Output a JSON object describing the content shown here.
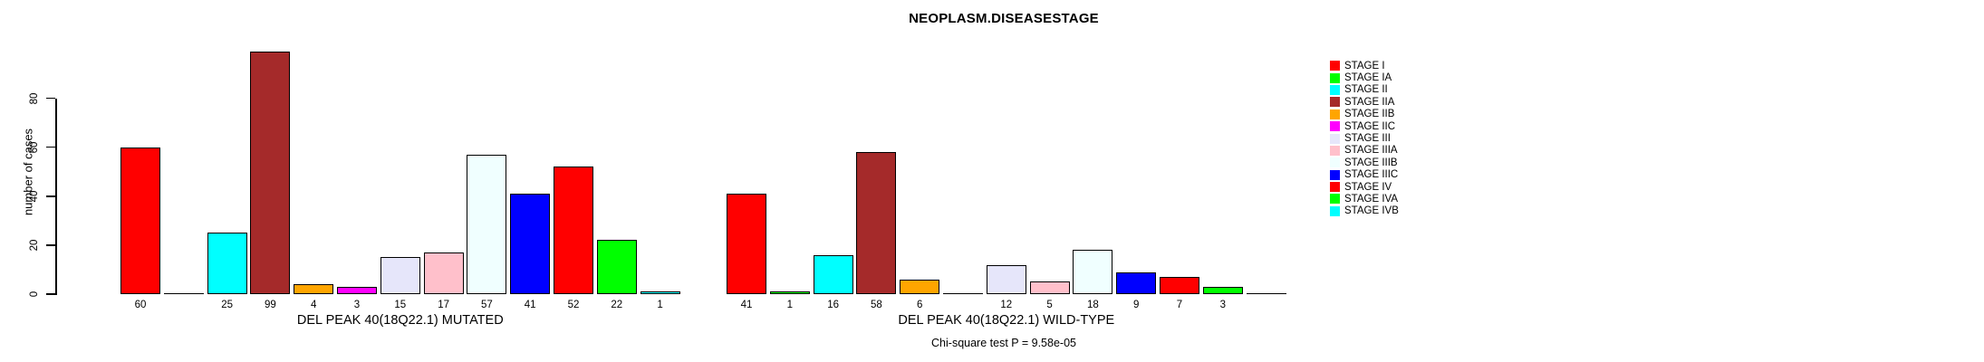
{
  "chart_data": {
    "type": "bar",
    "title": "NEOPLASM.DISEASESTAGE",
    "ylabel": "number of cases",
    "yticks": [
      0,
      20,
      40,
      60,
      80
    ],
    "ylim": [
      0,
      99
    ],
    "grid": false,
    "legend_position": "right",
    "categories": [
      "STAGE I",
      "STAGE IA",
      "STAGE II",
      "STAGE IIA",
      "STAGE IIB",
      "STAGE IIC",
      "STAGE III",
      "STAGE IIIA",
      "STAGE IIIB",
      "STAGE IIIC",
      "STAGE IV",
      "STAGE IVA",
      "STAGE IVB"
    ],
    "colors": [
      "#FF0000",
      "#00FF00",
      "#00FFFF",
      "#A52A2A",
      "#FFA500",
      "#FF00FF",
      "#E6E6FA",
      "#FFC0CB",
      "#F0FFFF",
      "#0000FF",
      "#FF0000",
      "#00FF00",
      "#00FFFF"
    ],
    "groups": [
      {
        "label": "DEL PEAK 40(18Q22.1) MUTATED",
        "values": [
          60,
          0,
          25,
          99,
          4,
          3,
          15,
          17,
          57,
          41,
          52,
          22,
          1
        ]
      },
      {
        "label": "DEL PEAK 40(18Q22.1) WILD-TYPE",
        "values": [
          41,
          1,
          16,
          58,
          6,
          0,
          12,
          5,
          18,
          9,
          7,
          3,
          0
        ]
      }
    ],
    "annotation": "Chi-square test P = 9.58e-05"
  }
}
